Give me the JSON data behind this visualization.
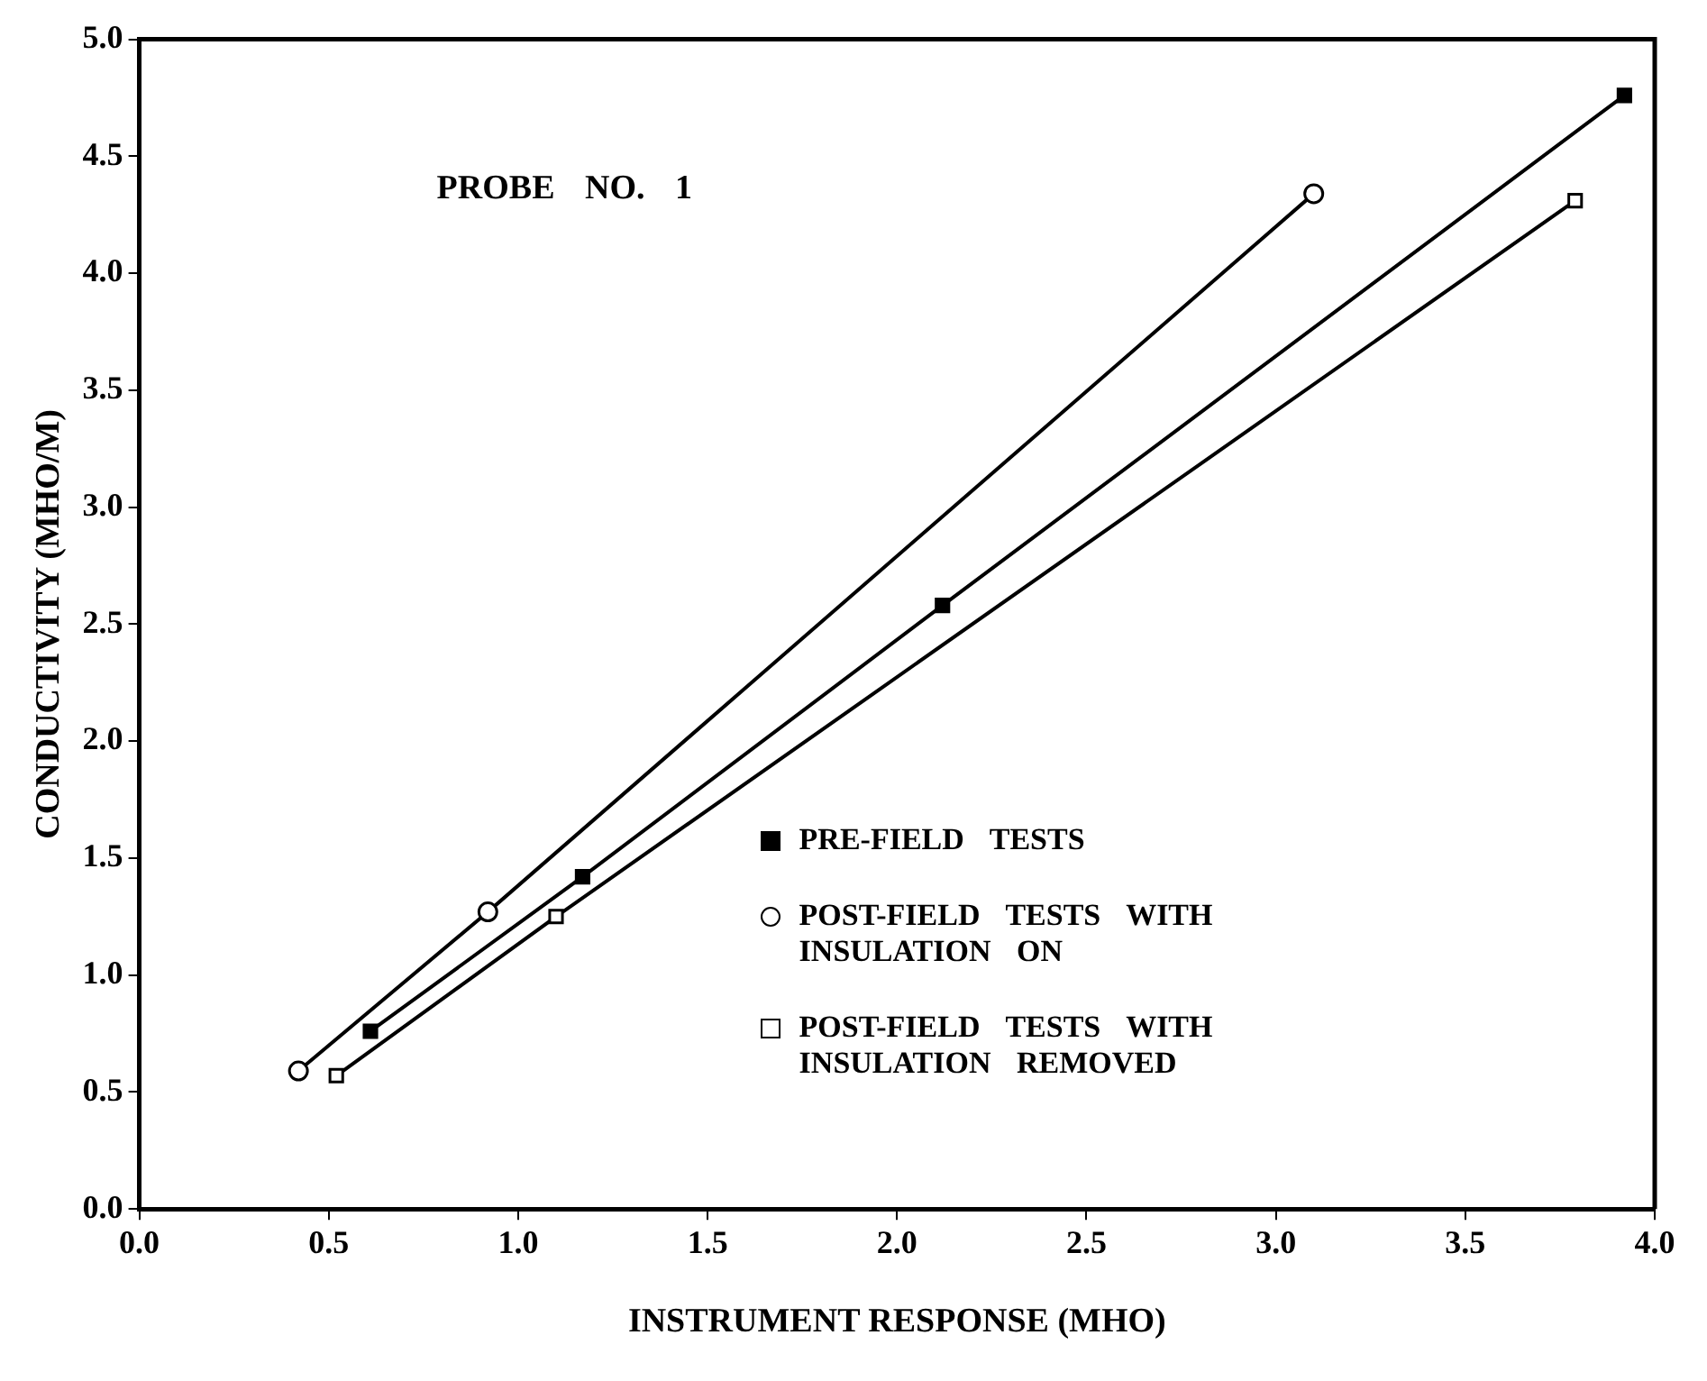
{
  "chart_data": {
    "type": "line",
    "title": "PROBE NO. 1",
    "xlabel": "INSTRUMENT RESPONSE (MHO)",
    "ylabel": "CONDUCTIVITY (MHO/M)",
    "xlim": [
      0,
      4
    ],
    "xticks": [
      {
        "value": 0,
        "label": "0.0"
      },
      {
        "value": 0.5,
        "label": "0.5"
      },
      {
        "value": 1,
        "label": "1.0"
      },
      {
        "value": 1.5,
        "label": "1.5"
      },
      {
        "value": 2,
        "label": "2.0"
      },
      {
        "value": 2.5,
        "label": "2.5"
      },
      {
        "value": 3,
        "label": "3.0"
      },
      {
        "value": 3.5,
        "label": "3.5"
      },
      {
        "value": 4,
        "label": "4.0"
      }
    ],
    "ylim": [
      0,
      5
    ],
    "yticks": [
      {
        "value": 0,
        "label": "0.0"
      },
      {
        "value": 0.5,
        "label": "0.5"
      },
      {
        "value": 1,
        "label": "1.0"
      },
      {
        "value": 1.5,
        "label": "1.5"
      },
      {
        "value": 2,
        "label": "2.0"
      },
      {
        "value": 2.5,
        "label": "2.5"
      },
      {
        "value": 3,
        "label": "3.0"
      },
      {
        "value": 3.5,
        "label": "3.5"
      },
      {
        "value": 4,
        "label": "4.0"
      },
      {
        "value": 4.5,
        "label": "4.5"
      },
      {
        "value": 5,
        "label": "5.0"
      }
    ],
    "grid": false,
    "legend": "bottom right",
    "line_style": "solid",
    "series": [
      {
        "name": "PRE-FIELD TESTS",
        "color": "#000000",
        "marker": "square",
        "x": [
          0.61,
          1.17,
          2.12,
          3.92
        ],
        "values": [
          0.76,
          1.42,
          2.58,
          4.76
        ]
      },
      {
        "name": "POST-FIELD TESTS WITH INSULATION ON",
        "color": "#000000",
        "marker": "circle",
        "x": [
          0.42,
          0.92,
          3.1
        ],
        "values": [
          0.59,
          1.27,
          4.34
        ]
      },
      {
        "name": "POST-FIELD TESTS WITH INSULATION REMOVED",
        "color": "#000000",
        "marker": "square",
        "x": [
          0.52,
          1.1,
          3.79
        ],
        "values": [
          0.57,
          1.25,
          4.31
        ]
      }
    ]
  }
}
